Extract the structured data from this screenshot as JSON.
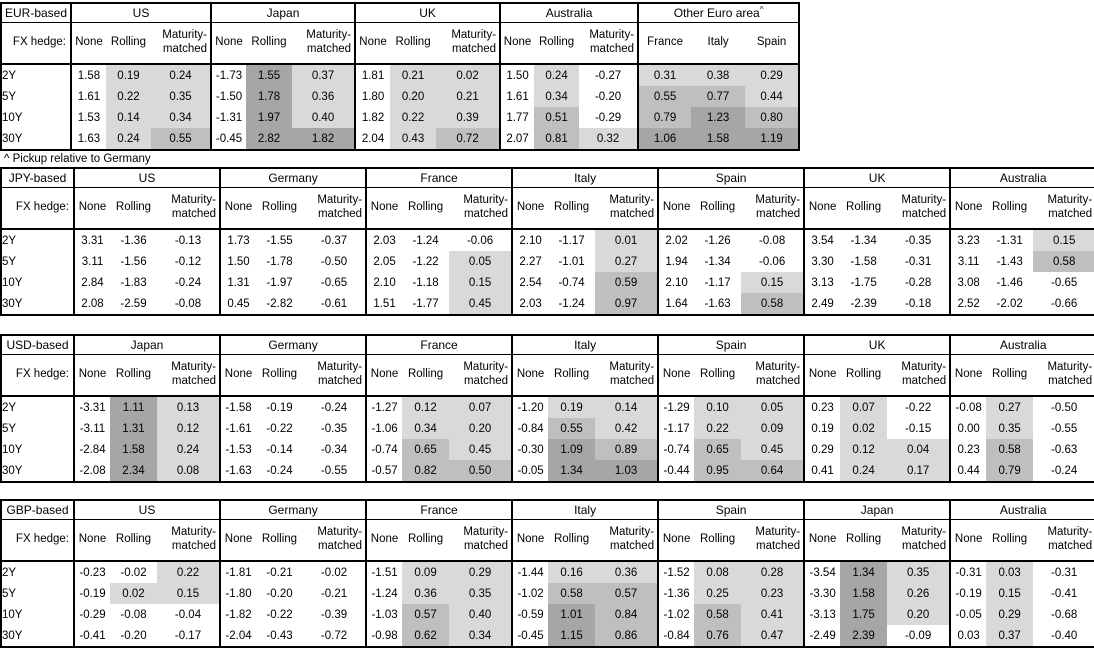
{
  "labels": {
    "fx_hedge": "FX hedge:"
  },
  "row_labels": [
    "2Y",
    "5Y",
    "10Y",
    "30Y"
  ],
  "footnote": "^ Pickup relative to Germany",
  "shading": {
    "non_positive": "#ffffff",
    "low": "#d9d9d9",
    "mid": "#bfbfbf",
    "high": "#a6a6a6",
    "low_upper_bound": 0.5,
    "mid_upper_bound": 1.0,
    "note": "shading applies to hedged / pickup columns only, not to the None column"
  },
  "tables": [
    {
      "base": "EUR-based",
      "groups": [
        {
          "label": "US",
          "cols": [
            "None",
            "Rolling",
            "Maturity-matched"
          ],
          "shade": [
            false,
            true,
            true
          ],
          "rows": [
            [
              "1.58",
              "0.19",
              "0.24"
            ],
            [
              "1.61",
              "0.22",
              "0.35"
            ],
            [
              "1.53",
              "0.14",
              "0.34"
            ],
            [
              "1.63",
              "0.24",
              "0.55"
            ]
          ]
        },
        {
          "label": "Japan",
          "cols": [
            "None",
            "Rolling",
            "Maturity-matched"
          ],
          "shade": [
            false,
            true,
            true
          ],
          "rows": [
            [
              "-1.73",
              "1.55",
              "0.37"
            ],
            [
              "-1.50",
              "1.78",
              "0.36"
            ],
            [
              "-1.31",
              "1.97",
              "0.40"
            ],
            [
              "-0.45",
              "2.82",
              "1.82"
            ]
          ]
        },
        {
          "label": "UK",
          "cols": [
            "None",
            "Rolling",
            "Maturity-matched"
          ],
          "shade": [
            false,
            true,
            true
          ],
          "rows": [
            [
              "1.81",
              "0.21",
              "0.02"
            ],
            [
              "1.80",
              "0.20",
              "0.21"
            ],
            [
              "1.82",
              "0.22",
              "0.39"
            ],
            [
              "2.04",
              "0.43",
              "0.72"
            ]
          ]
        },
        {
          "label": "Australia",
          "cols": [
            "None",
            "Rolling",
            "Maturity-matched"
          ],
          "shade": [
            false,
            true,
            true
          ],
          "rows": [
            [
              "1.50",
              "0.24",
              "-0.27"
            ],
            [
              "1.61",
              "0.34",
              "-0.20"
            ],
            [
              "1.77",
              "0.51",
              "-0.29"
            ],
            [
              "2.07",
              "0.81",
              "0.32"
            ]
          ]
        },
        {
          "label": "Other Euro area",
          "sup": "^",
          "cols": [
            "France",
            "Italy",
            "Spain"
          ],
          "shade": [
            true,
            true,
            true
          ],
          "rows": [
            [
              "0.31",
              "0.38",
              "0.29"
            ],
            [
              "0.55",
              "0.77",
              "0.44"
            ],
            [
              "0.79",
              "1.23",
              "0.80"
            ],
            [
              "1.06",
              "1.58",
              "1.19"
            ]
          ]
        }
      ]
    },
    {
      "base": "JPY-based",
      "groups": [
        {
          "label": "US",
          "cols": [
            "None",
            "Rolling",
            "Maturity-matched"
          ],
          "shade": [
            false,
            true,
            true
          ],
          "rows": [
            [
              "3.31",
              "-1.36",
              "-0.13"
            ],
            [
              "3.11",
              "-1.56",
              "-0.12"
            ],
            [
              "2.84",
              "-1.83",
              "-0.24"
            ],
            [
              "2.08",
              "-2.59",
              "-0.08"
            ]
          ]
        },
        {
          "label": "Germany",
          "cols": [
            "None",
            "Rolling",
            "Maturity-matched"
          ],
          "shade": [
            false,
            true,
            true
          ],
          "rows": [
            [
              "1.73",
              "-1.55",
              "-0.37"
            ],
            [
              "1.50",
              "-1.78",
              "-0.50"
            ],
            [
              "1.31",
              "-1.97",
              "-0.65"
            ],
            [
              "0.45",
              "-2.82",
              "-0.61"
            ]
          ]
        },
        {
          "label": "France",
          "cols": [
            "None",
            "Rolling",
            "Maturity-matched"
          ],
          "shade": [
            false,
            true,
            true
          ],
          "rows": [
            [
              "2.03",
              "-1.24",
              "-0.06"
            ],
            [
              "2.05",
              "-1.22",
              "0.05"
            ],
            [
              "2.10",
              "-1.18",
              "0.15"
            ],
            [
              "1.51",
              "-1.77",
              "0.45"
            ]
          ]
        },
        {
          "label": "Italy",
          "cols": [
            "None",
            "Rolling",
            "Maturity-matched"
          ],
          "shade": [
            false,
            true,
            true
          ],
          "rows": [
            [
              "2.10",
              "-1.17",
              "0.01"
            ],
            [
              "2.27",
              "-1.01",
              "0.27"
            ],
            [
              "2.54",
              "-0.74",
              "0.59"
            ],
            [
              "2.03",
              "-1.24",
              "0.97"
            ]
          ]
        },
        {
          "label": "Spain",
          "cols": [
            "None",
            "Rolling",
            "Maturity-matched"
          ],
          "shade": [
            false,
            true,
            true
          ],
          "rows": [
            [
              "2.02",
              "-1.26",
              "-0.08"
            ],
            [
              "1.94",
              "-1.34",
              "-0.06"
            ],
            [
              "2.10",
              "-1.17",
              "0.15"
            ],
            [
              "1.64",
              "-1.63",
              "0.58"
            ]
          ]
        },
        {
          "label": "UK",
          "cols": [
            "None",
            "Rolling",
            "Maturity-matched"
          ],
          "shade": [
            false,
            true,
            true
          ],
          "rows": [
            [
              "3.54",
              "-1.34",
              "-0.35"
            ],
            [
              "3.30",
              "-1.58",
              "-0.31"
            ],
            [
              "3.13",
              "-1.75",
              "-0.28"
            ],
            [
              "2.49",
              "-2.39",
              "-0.18"
            ]
          ]
        },
        {
          "label": "Australia",
          "cols": [
            "None",
            "Rolling",
            "Maturity-matched"
          ],
          "shade": [
            false,
            true,
            true
          ],
          "rows": [
            [
              "3.23",
              "-1.31",
              "0.15"
            ],
            [
              "3.11",
              "-1.43",
              "0.58"
            ],
            [
              "3.08",
              "-1.46",
              "-0.65"
            ],
            [
              "2.52",
              "-2.02",
              "-0.66"
            ]
          ]
        }
      ]
    },
    {
      "base": "USD-based",
      "groups": [
        {
          "label": "Japan",
          "cols": [
            "None",
            "Rolling",
            "Maturity-matched"
          ],
          "shade": [
            false,
            true,
            true
          ],
          "rows": [
            [
              "-3.31",
              "1.11",
              "0.13"
            ],
            [
              "-3.11",
              "1.31",
              "0.12"
            ],
            [
              "-2.84",
              "1.58",
              "0.24"
            ],
            [
              "-2.08",
              "2.34",
              "0.08"
            ]
          ]
        },
        {
          "label": "Germany",
          "cols": [
            "None",
            "Rolling",
            "Maturity-matched"
          ],
          "shade": [
            false,
            true,
            true
          ],
          "rows": [
            [
              "-1.58",
              "-0.19",
              "-0.24"
            ],
            [
              "-1.61",
              "-0.22",
              "-0.35"
            ],
            [
              "-1.53",
              "-0.14",
              "-0.34"
            ],
            [
              "-1.63",
              "-0.24",
              "-0.55"
            ]
          ]
        },
        {
          "label": "France",
          "cols": [
            "None",
            "Rolling",
            "Maturity-matched"
          ],
          "shade": [
            false,
            true,
            true
          ],
          "rows": [
            [
              "-1.27",
              "0.12",
              "0.07"
            ],
            [
              "-1.06",
              "0.34",
              "0.20"
            ],
            [
              "-0.74",
              "0.65",
              "0.45"
            ],
            [
              "-0.57",
              "0.82",
              "0.50"
            ]
          ]
        },
        {
          "label": "Italy",
          "cols": [
            "None",
            "Rolling",
            "Maturity-matched"
          ],
          "shade": [
            false,
            true,
            true
          ],
          "rows": [
            [
              "-1.20",
              "0.19",
              "0.14"
            ],
            [
              "-0.84",
              "0.55",
              "0.42"
            ],
            [
              "-0.30",
              "1.09",
              "0.89"
            ],
            [
              "-0.05",
              "1.34",
              "1.03"
            ]
          ]
        },
        {
          "label": "Spain",
          "cols": [
            "None",
            "Rolling",
            "Maturity-matched"
          ],
          "shade": [
            false,
            true,
            true
          ],
          "rows": [
            [
              "-1.29",
              "0.10",
              "0.05"
            ],
            [
              "-1.17",
              "0.22",
              "0.09"
            ],
            [
              "-0.74",
              "0.65",
              "0.45"
            ],
            [
              "-0.44",
              "0.95",
              "0.64"
            ]
          ]
        },
        {
          "label": "UK",
          "cols": [
            "None",
            "Rolling",
            "Maturity-matched"
          ],
          "shade": [
            false,
            true,
            true
          ],
          "rows": [
            [
              "0.23",
              "0.07",
              "-0.22"
            ],
            [
              "0.19",
              "0.02",
              "-0.15"
            ],
            [
              "0.29",
              "0.12",
              "0.04"
            ],
            [
              "0.41",
              "0.24",
              "0.17"
            ]
          ]
        },
        {
          "label": "Australia",
          "cols": [
            "None",
            "Rolling",
            "Maturity-matched"
          ],
          "shade": [
            false,
            true,
            true
          ],
          "rows": [
            [
              "-0.08",
              "0.27",
              "-0.50"
            ],
            [
              "0.00",
              "0.35",
              "-0.55"
            ],
            [
              "0.23",
              "0.58",
              "-0.63"
            ],
            [
              "0.44",
              "0.79",
              "-0.24"
            ]
          ]
        }
      ]
    },
    {
      "base": "GBP-based",
      "groups": [
        {
          "label": "US",
          "cols": [
            "None",
            "Rolling",
            "Maturity-matched"
          ],
          "shade": [
            false,
            true,
            true
          ],
          "rows": [
            [
              "-0.23",
              "-0.02",
              "0.22"
            ],
            [
              "-0.19",
              "0.02",
              "0.15"
            ],
            [
              "-0.29",
              "-0.08",
              "-0.04"
            ],
            [
              "-0.41",
              "-0.20",
              "-0.17"
            ]
          ]
        },
        {
          "label": "Germany",
          "cols": [
            "None",
            "Rolling",
            "Maturity-matched"
          ],
          "shade": [
            false,
            true,
            true
          ],
          "rows": [
            [
              "-1.81",
              "-0.21",
              "-0.02"
            ],
            [
              "-1.80",
              "-0.20",
              "-0.21"
            ],
            [
              "-1.82",
              "-0.22",
              "-0.39"
            ],
            [
              "-2.04",
              "-0.43",
              "-0.72"
            ]
          ]
        },
        {
          "label": "France",
          "cols": [
            "None",
            "Rolling",
            "Maturity-matched"
          ],
          "shade": [
            false,
            true,
            true
          ],
          "rows": [
            [
              "-1.51",
              "0.09",
              "0.29"
            ],
            [
              "-1.24",
              "0.36",
              "0.35"
            ],
            [
              "-1.03",
              "0.57",
              "0.40"
            ],
            [
              "-0.98",
              "0.62",
              "0.34"
            ]
          ]
        },
        {
          "label": "Italy",
          "cols": [
            "None",
            "Rolling",
            "Maturity-matched"
          ],
          "shade": [
            false,
            true,
            true
          ],
          "rows": [
            [
              "-1.44",
              "0.16",
              "0.36"
            ],
            [
              "-1.02",
              "0.58",
              "0.57"
            ],
            [
              "-0.59",
              "1.01",
              "0.84"
            ],
            [
              "-0.45",
              "1.15",
              "0.86"
            ]
          ]
        },
        {
          "label": "Spain",
          "cols": [
            "None",
            "Rolling",
            "Maturity-matched"
          ],
          "shade": [
            false,
            true,
            true
          ],
          "rows": [
            [
              "-1.52",
              "0.08",
              "0.28"
            ],
            [
              "-1.36",
              "0.25",
              "0.23"
            ],
            [
              "-1.02",
              "0.58",
              "0.41"
            ],
            [
              "-0.84",
              "0.76",
              "0.47"
            ]
          ]
        },
        {
          "label": "Japan",
          "cols": [
            "None",
            "Rolling",
            "Maturity-matched"
          ],
          "shade": [
            false,
            true,
            true
          ],
          "rows": [
            [
              "-3.54",
              "1.34",
              "0.35"
            ],
            [
              "-3.30",
              "1.58",
              "0.26"
            ],
            [
              "-3.13",
              "1.75",
              "0.20"
            ],
            [
              "-2.49",
              "2.39",
              "-0.09"
            ]
          ]
        },
        {
          "label": "Australia",
          "cols": [
            "None",
            "Rolling",
            "Maturity-matched"
          ],
          "shade": [
            false,
            true,
            true
          ],
          "rows": [
            [
              "-0.31",
              "0.03",
              "-0.31"
            ],
            [
              "-0.19",
              "0.15",
              "-0.41"
            ],
            [
              "-0.05",
              "0.29",
              "-0.68"
            ],
            [
              "0.03",
              "0.37",
              "-0.40"
            ]
          ]
        }
      ]
    }
  ]
}
